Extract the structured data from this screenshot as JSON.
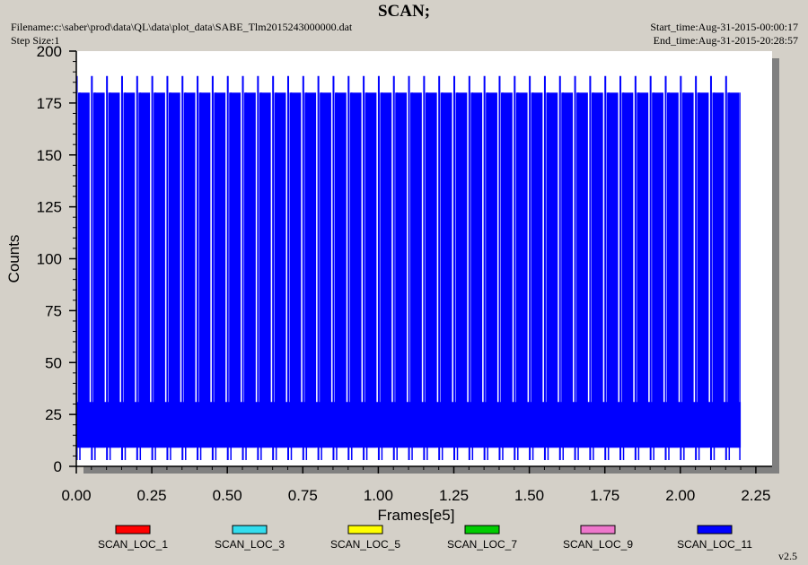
{
  "header": {
    "title": "SCAN;",
    "filename": "Filename:c:\\saber\\prod\\data\\QL\\data\\plot_data\\SABE_Tlm2015243000000.dat",
    "step_size": "Step Size:1",
    "start_time": "Start_time:Aug-31-2015-00:00:17",
    "end_time": "End_time:Aug-31-2015-20:28:57"
  },
  "version": "v2.5",
  "colors": {
    "background": "#d4d0c8",
    "plot_area": "#ffffff",
    "data_fill": "#0000ff",
    "spike_color": "#0000ff"
  },
  "chart_data": {
    "type": "line",
    "xlabel": "Frames[e5]",
    "ylabel": "Counts",
    "xlim": [
      0,
      2.3
    ],
    "ylim": [
      0,
      200
    ],
    "x_ticks": [
      "0.00",
      "0.25",
      "0.50",
      "0.75",
      "1.00",
      "1.25",
      "1.50",
      "1.75",
      "2.00",
      "2.25"
    ],
    "x_tick_values": [
      0,
      0.25,
      0.5,
      0.75,
      1.0,
      1.25,
      1.5,
      1.75,
      2.0,
      2.25
    ],
    "y_ticks": [
      "0",
      "25",
      "50",
      "75",
      "100",
      "125",
      "150",
      "175",
      "200"
    ],
    "y_tick_values": [
      0,
      25,
      50,
      75,
      100,
      125,
      150,
      175,
      200
    ],
    "grid": false,
    "legend_position": "bottom",
    "series": [
      {
        "name": "SCAN_LOC_1",
        "color": "#ff0000"
      },
      {
        "name": "SCAN_LOC_3",
        "color": "#33ddee"
      },
      {
        "name": "SCAN_LOC_5",
        "color": "#ffff00"
      },
      {
        "name": "SCAN_LOC_7",
        "color": "#00cc00"
      },
      {
        "name": "SCAN_LOC_9",
        "color": "#ee77cc"
      },
      {
        "name": "SCAN_LOC_11",
        "color": "#0000ff"
      }
    ],
    "data_x_range": [
      0,
      2.2
    ],
    "band_counts": [
      9,
      31
    ],
    "scan_peak_counts": [
      180,
      188
    ],
    "scan_trough_counts": [
      3,
      9
    ],
    "scan_period_frames_e5": 0.05,
    "scan_count": 44
  }
}
